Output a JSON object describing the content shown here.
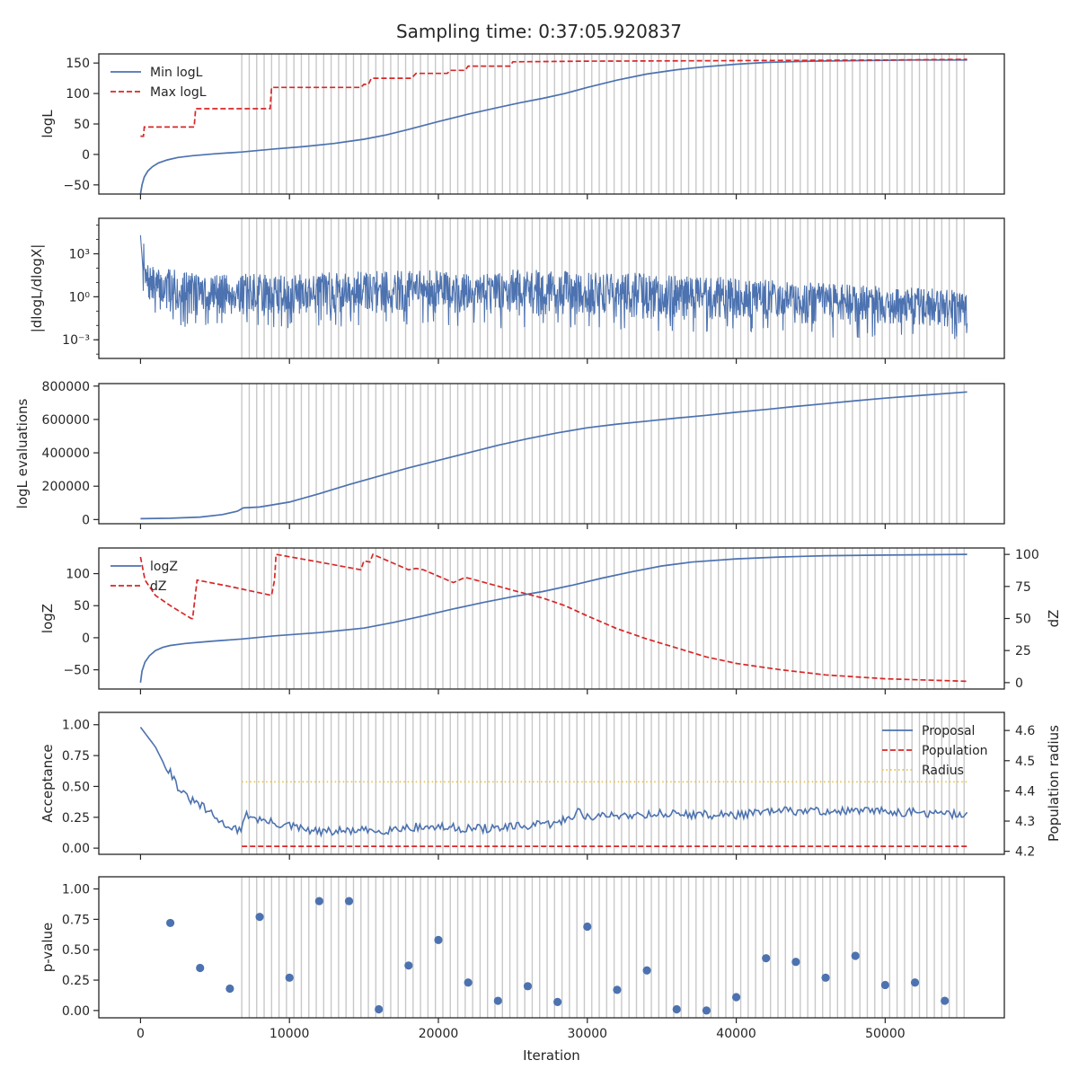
{
  "figure": {
    "title": "Sampling time: 0:37:05.920837",
    "xlabel": "Iteration"
  },
  "colors": {
    "blue": "#4c72b0",
    "red": "#d62728",
    "yellow": "#e8c33a",
    "grid": "#c8c8c8",
    "axes": "#262626"
  },
  "xaxis": {
    "lim": [
      -2800,
      58000
    ],
    "ticks": [
      0,
      10000,
      20000,
      30000,
      40000,
      50000
    ],
    "tick_labels": [
      "0",
      "10000",
      "20000",
      "30000",
      "40000",
      "50000"
    ]
  },
  "chart_data": [
    {
      "type": "line",
      "ylabel": "logL",
      "ylim": [
        -65,
        165
      ],
      "yticks": [
        -50,
        0,
        50,
        100,
        150
      ],
      "ytick_labels": [
        "−50",
        "0",
        "50",
        "100",
        "150"
      ],
      "legend": {
        "placement": "upper-left",
        "entries": [
          "Min logL",
          "Max logL"
        ]
      },
      "series": [
        {
          "name": "Min logL",
          "style": "solid",
          "color": "blue",
          "x": [
            0,
            100,
            250,
            500,
            800,
            1200,
            1800,
            2500,
            3500,
            5000,
            6800,
            9000,
            11000,
            13000,
            15000,
            16500,
            18000,
            20000,
            22000,
            24000,
            25500,
            27000,
            28500,
            30000,
            32000,
            34000,
            36000,
            38000,
            40000,
            42000,
            45000,
            48000,
            52000,
            55500
          ],
          "y": [
            -65,
            -50,
            -37,
            -27,
            -20,
            -14,
            -9,
            -5,
            -2,
            1,
            4,
            9,
            13,
            18,
            25,
            32,
            41,
            54,
            66,
            77,
            85,
            92,
            100,
            110,
            122,
            132,
            139,
            144,
            148,
            151,
            153,
            154,
            155,
            155
          ]
        },
        {
          "name": "Max logL",
          "style": "dashed",
          "color": "red",
          "x": [
            0,
            200,
            250,
            500,
            3600,
            3700,
            6800,
            8700,
            8800,
            13000,
            14800,
            15000,
            15300,
            15500,
            18200,
            18500,
            20600,
            20800,
            21800,
            22000,
            24800,
            25000,
            30000,
            40000,
            50000,
            55500
          ],
          "y": [
            30,
            30,
            45,
            45,
            45,
            75,
            75,
            75,
            110,
            110,
            110,
            115,
            115,
            125,
            125,
            133,
            133,
            138,
            138,
            145,
            145,
            152,
            153,
            154,
            155,
            156
          ]
        }
      ],
      "vlines": "run_boundaries"
    },
    {
      "type": "line",
      "ylabel": "|dlogL/dlogX|",
      "yscale": "log",
      "ylim": [
        5e-05,
        300000
      ],
      "yticks": [
        0.001,
        1,
        1000
      ],
      "ytick_labels": [
        "10⁻³",
        "10⁰",
        "10³"
      ],
      "series": [
        {
          "name": "",
          "style": "noisy-band",
          "color": "blue",
          "x": [
            0,
            300,
            1000,
            5000,
            10000,
            15000,
            20000,
            25000,
            30000,
            35000,
            40000,
            45000,
            50000,
            55500
          ],
          "y_upper": [
            20000,
            200,
            100,
            40,
            40,
            60,
            80,
            80,
            60,
            40,
            20,
            10,
            5,
            3
          ],
          "y_lower": [
            1,
            0.2,
            0.03,
            0.02,
            0.02,
            0.03,
            0.02,
            0.02,
            0.02,
            0.01,
            0.01,
            0.005,
            0.003,
            0.003
          ]
        }
      ],
      "vlines": "run_boundaries"
    },
    {
      "type": "line",
      "ylabel": "logL evaluations",
      "ylim": [
        -25000,
        815000
      ],
      "yticks": [
        0,
        200000,
        400000,
        600000,
        800000
      ],
      "ytick_labels": [
        "0",
        "200000",
        "400000",
        "600000",
        "800000"
      ],
      "series": [
        {
          "name": "",
          "style": "solid",
          "color": "blue",
          "x": [
            0,
            2000,
            4000,
            5500,
            6500,
            6900,
            8000,
            10000,
            12000,
            14000,
            16000,
            18000,
            20000,
            22000,
            24000,
            26000,
            28000,
            30000,
            32000,
            34000,
            36000,
            38000,
            40000,
            42000,
            44000,
            46000,
            48000,
            50000,
            52000,
            55500
          ],
          "y": [
            5000,
            8000,
            15000,
            30000,
            50000,
            70000,
            75000,
            105000,
            155000,
            210000,
            260000,
            310000,
            355000,
            400000,
            445000,
            485000,
            520000,
            550000,
            572000,
            590000,
            608000,
            625000,
            643000,
            660000,
            678000,
            695000,
            712000,
            728000,
            742000,
            765000
          ]
        }
      ],
      "vlines": "run_boundaries"
    },
    {
      "type": "line",
      "ylabel": "logZ",
      "ylabel_right": "dZ",
      "ylim": [
        -80,
        140
      ],
      "yticks": [
        -50,
        0,
        50,
        100
      ],
      "ytick_labels": [
        "−50",
        "0",
        "50",
        "100"
      ],
      "ylim_right": [
        -5,
        105
      ],
      "yticks_right": [
        0,
        25,
        50,
        75,
        100
      ],
      "ytick_labels_right": [
        "0",
        "25",
        "50",
        "75",
        "100"
      ],
      "legend": {
        "placement": "upper-left",
        "entries": [
          "logZ",
          "dZ"
        ]
      },
      "series": [
        {
          "name": "logZ",
          "style": "solid",
          "color": "blue",
          "axis": "left",
          "x": [
            0,
            100,
            300,
            600,
            1000,
            1500,
            2000,
            3000,
            4000,
            5000,
            6800,
            9000,
            12000,
            15000,
            17000,
            19000,
            21000,
            23000,
            25000,
            27000,
            29000,
            31000,
            33000,
            35000,
            37000,
            40000,
            43000,
            46000,
            50000,
            55500
          ],
          "y": [
            -70,
            -52,
            -38,
            -28,
            -20,
            -15,
            -12,
            -9,
            -7,
            -5,
            -2,
            3,
            8,
            15,
            24,
            34,
            45,
            55,
            64,
            72,
            82,
            93,
            103,
            112,
            118,
            123,
            126,
            128,
            129,
            130
          ]
        },
        {
          "name": "dZ",
          "style": "dashed",
          "color": "red",
          "axis": "right",
          "x": [
            0,
            300,
            1000,
            2000,
            3400,
            3500,
            3800,
            6000,
            8800,
            9000,
            9100,
            12000,
            14800,
            15000,
            15400,
            15600,
            18000,
            18500,
            19000,
            21000,
            21800,
            22200,
            25000,
            27000,
            28500,
            30000,
            32000,
            34000,
            36000,
            38000,
            40000,
            43000,
            46000,
            50000,
            55500
          ],
          "y": [
            98,
            80,
            68,
            60,
            50,
            50,
            80,
            75,
            68,
            80,
            100,
            94,
            88,
            95,
            94,
            100,
            88,
            89,
            88,
            78,
            82,
            81,
            72,
            66,
            60,
            52,
            42,
            34,
            27,
            20,
            15,
            10,
            6,
            3,
            1
          ]
        }
      ],
      "vlines": "run_boundaries"
    },
    {
      "type": "line",
      "ylabel": "Acceptance",
      "ylabel_right": "Population radius",
      "ylim": [
        -0.05,
        1.1
      ],
      "yticks": [
        0,
        0.25,
        0.5,
        0.75,
        1.0
      ],
      "ytick_labels": [
        "0.00",
        "0.25",
        "0.50",
        "0.75",
        "1.00"
      ],
      "ylim_right": [
        4.19,
        4.66
      ],
      "yticks_right": [
        4.2,
        4.3,
        4.4,
        4.5,
        4.6
      ],
      "ytick_labels_right": [
        "4.2",
        "4.3",
        "4.4",
        "4.5",
        "4.6"
      ],
      "legend": {
        "placement": "upper-right",
        "entries": [
          "Proposal",
          "Population",
          "Radius"
        ]
      },
      "series": [
        {
          "name": "Proposal",
          "style": "noisy-solid",
          "color": "blue",
          "axis": "left",
          "x": [
            0,
            500,
            1000,
            1500,
            2000,
            2500,
            3000,
            3500,
            4000,
            4500,
            5000,
            5500,
            6000,
            6500,
            6800,
            7000,
            8000,
            9000,
            10000,
            11000,
            12000,
            14000,
            16000,
            18000,
            20000,
            22000,
            24000,
            26000,
            28000,
            29500,
            30000,
            31000,
            33000,
            35000,
            38000,
            40000,
            43000,
            46000,
            50000,
            53000,
            55500
          ],
          "y": [
            0.98,
            0.9,
            0.82,
            0.7,
            0.62,
            0.5,
            0.42,
            0.38,
            0.35,
            0.3,
            0.25,
            0.2,
            0.18,
            0.15,
            0.12,
            0.28,
            0.23,
            0.2,
            0.18,
            0.15,
            0.13,
            0.14,
            0.14,
            0.17,
            0.17,
            0.16,
            0.16,
            0.18,
            0.2,
            0.3,
            0.25,
            0.26,
            0.27,
            0.28,
            0.27,
            0.27,
            0.3,
            0.3,
            0.3,
            0.28,
            0.27
          ]
        },
        {
          "name": "Population",
          "style": "dashed",
          "color": "red",
          "axis": "left",
          "x": [
            6800,
            55500
          ],
          "y": [
            0.015,
            0.015
          ]
        },
        {
          "name": "Radius",
          "style": "dotted",
          "color": "yellow",
          "axis": "right",
          "x": [
            6800,
            55500
          ],
          "y": [
            4.43,
            4.43
          ]
        }
      ],
      "vlines": "run_boundaries"
    },
    {
      "type": "scatter",
      "ylabel": "p-value",
      "ylim": [
        -0.06,
        1.1
      ],
      "yticks": [
        0,
        0.25,
        0.5,
        0.75,
        1.0
      ],
      "ytick_labels": [
        "0.00",
        "0.25",
        "0.50",
        "0.75",
        "1.00"
      ],
      "series": [
        {
          "name": "",
          "color": "blue",
          "x": [
            2000,
            4000,
            6000,
            8000,
            10000,
            12000,
            14000,
            16000,
            18000,
            20000,
            22000,
            24000,
            26000,
            28000,
            30000,
            32000,
            34000,
            36000,
            38000,
            40000,
            42000,
            44000,
            46000,
            48000,
            50000,
            52000,
            54000
          ],
          "y": [
            0.72,
            0.35,
            0.18,
            0.77,
            0.27,
            0.9,
            0.9,
            0.01,
            0.37,
            0.58,
            0.23,
            0.08,
            0.2,
            0.07,
            0.69,
            0.17,
            0.33,
            0.01,
            0.0,
            0.11,
            0.43,
            0.4,
            0.27,
            0.45,
            0.21,
            0.23,
            0.08
          ]
        }
      ],
      "vlines": "run_boundaries"
    }
  ],
  "run_boundaries": {
    "first": 6800,
    "spacing": 500,
    "last": 55500
  }
}
